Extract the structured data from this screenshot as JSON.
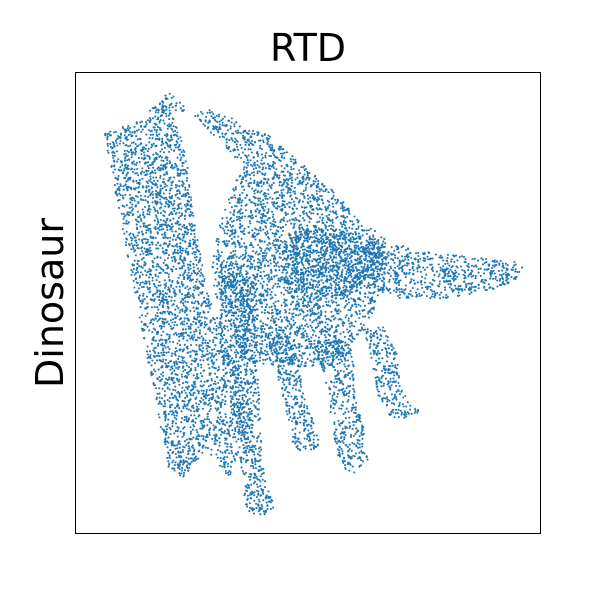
{
  "chart_data": {
    "type": "scatter",
    "title": "RTD",
    "xlabel": "",
    "ylabel": "Dinosaur",
    "xlim": [
      0,
      100
    ],
    "ylim": [
      0,
      100
    ],
    "grid": false,
    "x_ticks": [],
    "y_ticks": [],
    "point_color": "#1f77b4",
    "point_count_approx": 9000,
    "density_regions": [
      {
        "part": "neck-and-head",
        "polygon": [
          [
            20,
            14
          ],
          [
            23,
            12
          ],
          [
            28,
            18
          ],
          [
            33,
            12
          ],
          [
            38,
            26
          ],
          [
            36,
            32
          ],
          [
            28,
            54
          ],
          [
            25,
            71
          ],
          [
            24,
            80
          ],
          [
            22,
            89
          ],
          [
            19,
            95
          ],
          [
            18,
            91
          ],
          [
            6,
            87
          ]
        ]
      },
      {
        "part": "body",
        "polygon": [
          [
            20,
            96
          ],
          [
            15,
            91
          ],
          [
            29,
            92
          ],
          [
            34,
            90
          ],
          [
            36,
            88
          ],
          [
            41,
            87
          ],
          [
            43,
            85
          ],
          [
            49,
            80
          ],
          [
            56,
            74
          ],
          [
            60,
            69
          ],
          [
            65,
            63
          ],
          [
            67,
            59
          ],
          [
            66,
            54
          ],
          [
            64,
            48
          ],
          [
            61,
            43
          ],
          [
            57,
            39
          ],
          [
            55,
            37
          ],
          [
            49,
            36
          ],
          [
            41,
            36
          ],
          [
            36,
            38
          ],
          [
            33,
            46
          ],
          [
            30,
            52
          ],
          [
            29,
            58
          ],
          [
            31,
            67
          ],
          [
            34,
            76
          ],
          [
            36,
            80
          ]
        ]
      },
      {
        "part": "tail",
        "polygon": [
          [
            63,
            67
          ],
          [
            68,
            63
          ],
          [
            76,
            61
          ],
          [
            85,
            60
          ],
          [
            95,
            59
          ],
          [
            97,
            57
          ],
          [
            95,
            55
          ],
          [
            90,
            53
          ],
          [
            80,
            51
          ],
          [
            70,
            51
          ],
          [
            66,
            52
          ],
          [
            63,
            55
          ]
        ]
      },
      {
        "part": "leg-far-left",
        "polygon": [
          [
            31,
            59
          ],
          [
            36,
            58
          ],
          [
            38,
            55
          ],
          [
            39,
            40
          ],
          [
            40,
            20
          ],
          [
            41,
            10
          ],
          [
            43,
            6
          ],
          [
            41,
            4
          ],
          [
            37,
            4
          ],
          [
            36,
            10
          ],
          [
            35,
            20
          ],
          [
            33,
            33
          ],
          [
            31,
            40
          ]
        ]
      },
      {
        "part": "leg-center-left",
        "polygon": [
          [
            41,
            43
          ],
          [
            47,
            43
          ],
          [
            48,
            38
          ],
          [
            49,
            30
          ],
          [
            52,
            22
          ],
          [
            53,
            19
          ],
          [
            51,
            18
          ],
          [
            47,
            18
          ],
          [
            46,
            24
          ],
          [
            44,
            32
          ],
          [
            42,
            40
          ]
        ]
      },
      {
        "part": "leg-center-right",
        "polygon": [
          [
            53,
            42
          ],
          [
            59,
            41
          ],
          [
            60,
            36
          ],
          [
            60,
            30
          ],
          [
            62,
            23
          ],
          [
            63,
            16
          ],
          [
            60,
            13
          ],
          [
            58,
            13
          ],
          [
            56,
            18
          ],
          [
            55,
            25
          ],
          [
            54,
            32
          ],
          [
            52,
            38
          ]
        ]
      },
      {
        "part": "leg-far-right",
        "polygon": [
          [
            61,
            44
          ],
          [
            66,
            45
          ],
          [
            69,
            40
          ],
          [
            70,
            32
          ],
          [
            72,
            28
          ],
          [
            75,
            26
          ],
          [
            72,
            25
          ],
          [
            68,
            25
          ],
          [
            65,
            30
          ],
          [
            64,
            36
          ],
          [
            63,
            41
          ]
        ]
      },
      {
        "part": "belly-ring",
        "polygon": [
          [
            44,
            55
          ],
          [
            50,
            50
          ],
          [
            55,
            51
          ],
          [
            62,
            53
          ],
          [
            67,
            59
          ],
          [
            66,
            62
          ],
          [
            58,
            66
          ],
          [
            50,
            67
          ],
          [
            45,
            63
          ]
        ]
      }
    ]
  }
}
